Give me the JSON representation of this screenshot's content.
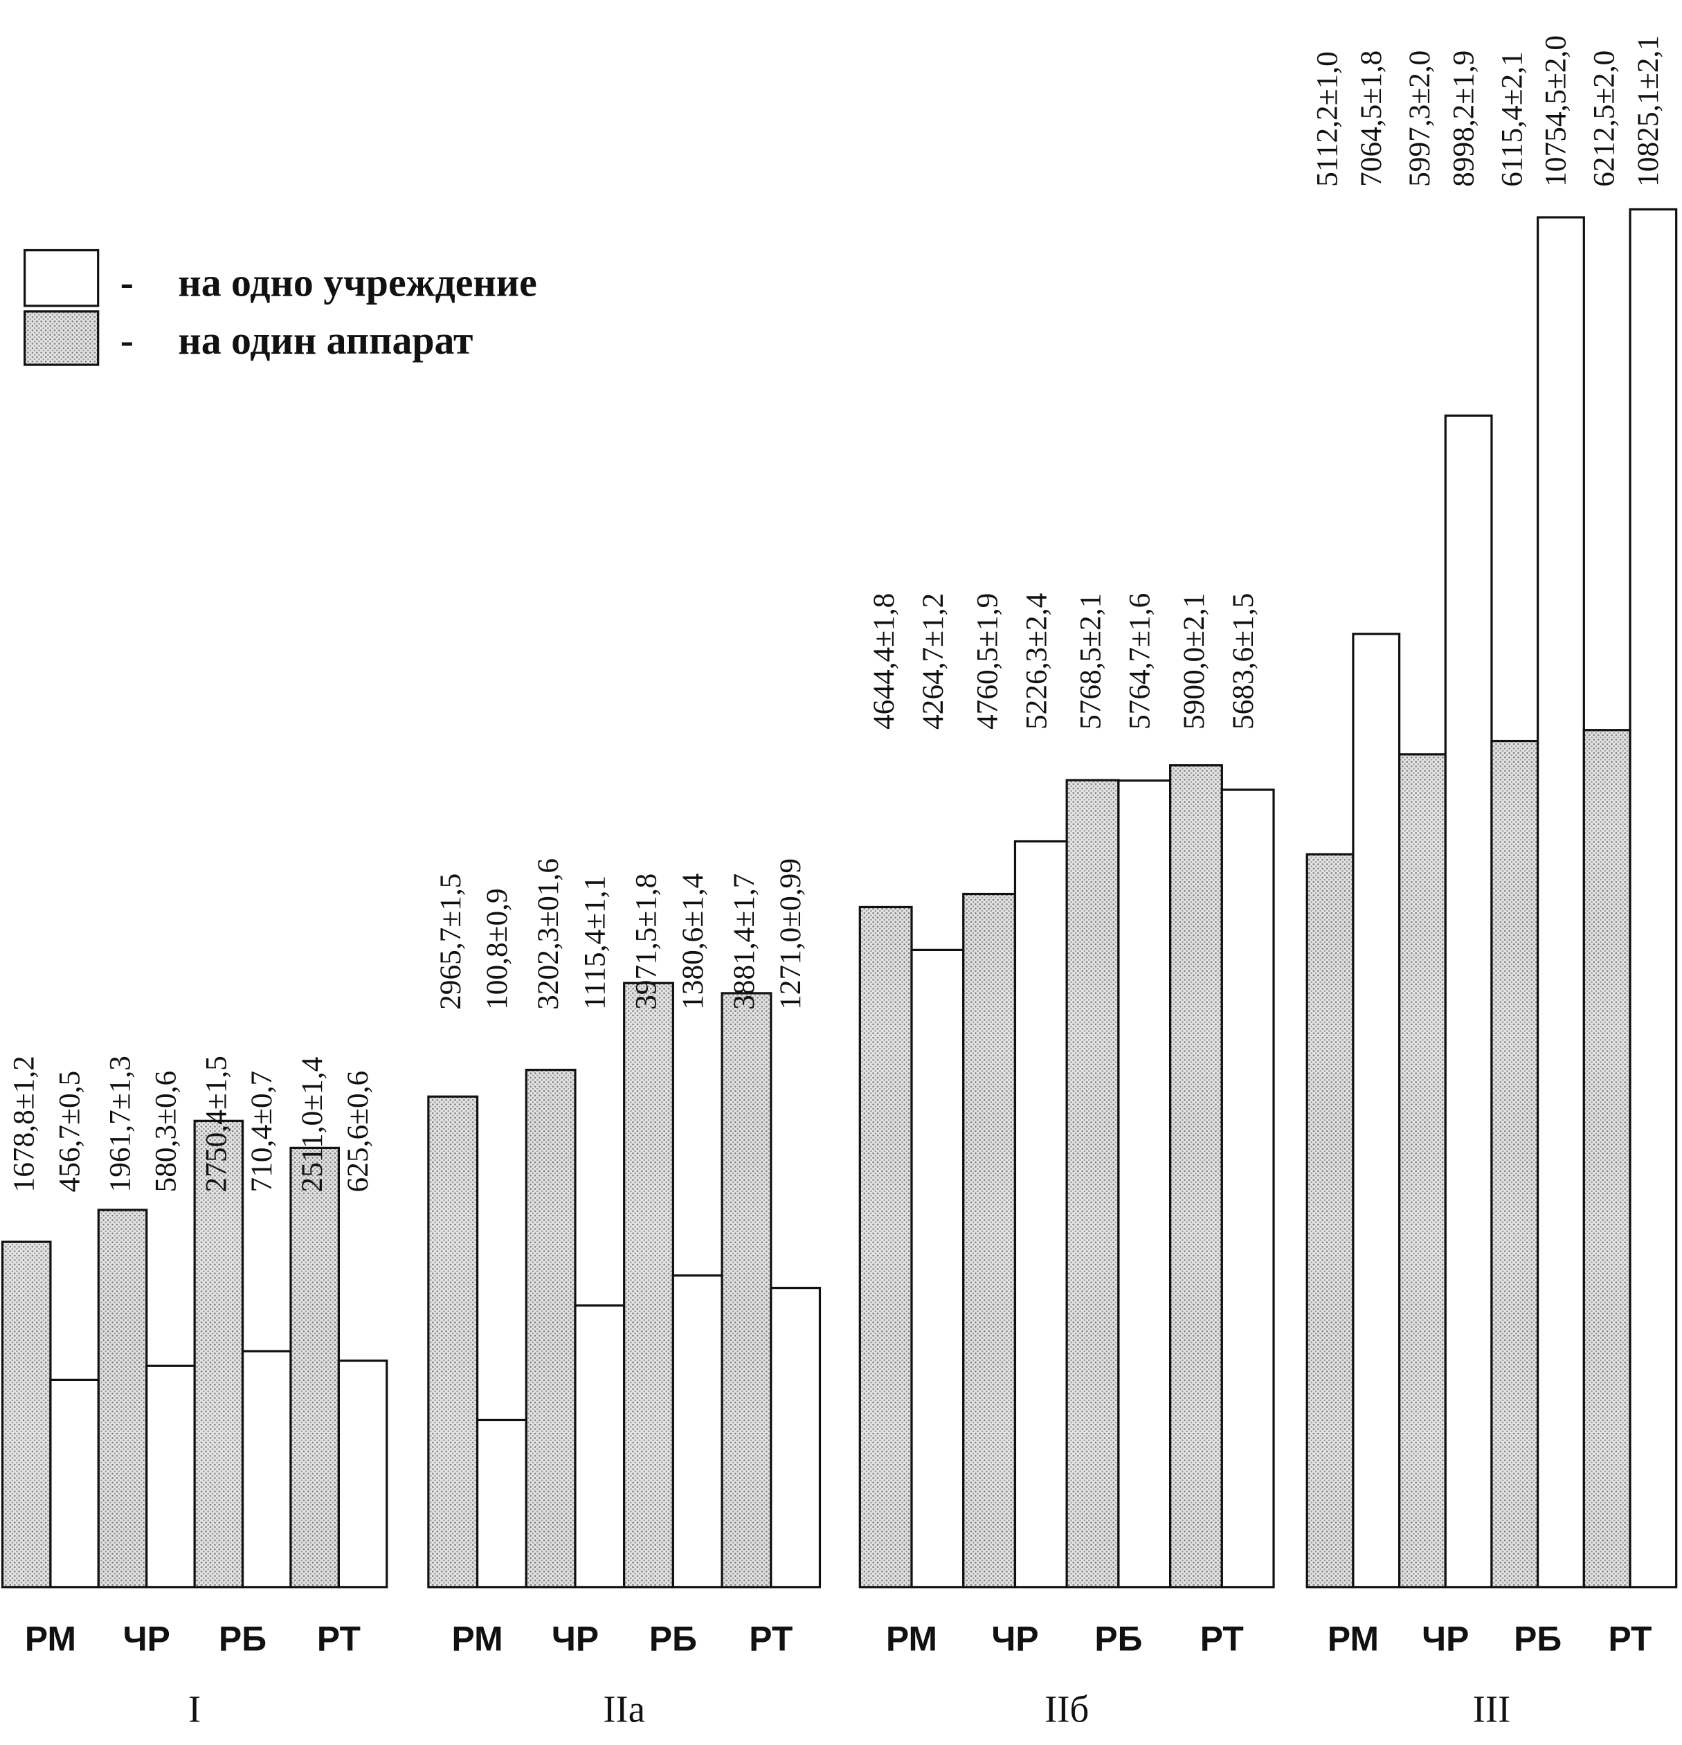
{
  "chart_data": {
    "type": "bar",
    "title": "",
    "xlabel": "",
    "ylabel": "",
    "legend_position": "top-left",
    "legend": [
      {
        "key": "institution",
        "dash": "-",
        "label": "на одно учреждение",
        "fill": "#ffffff"
      },
      {
        "key": "apparatus",
        "dash": "-",
        "label": "на один аппарат",
        "fill": "dotted-gray"
      }
    ],
    "categories": [
      "РМ",
      "ЧР",
      "РБ",
      "РТ"
    ],
    "groups": [
      {
        "name": "I",
        "apparatus": [
          "1678,8±1,2",
          "1961,7±1,3",
          "2750,4±1,5",
          "2511,0±1,4"
        ],
        "institution": [
          "456,7±0,5",
          "580,3±0,6",
          "710,4±0,7",
          "625,6±0,6"
        ],
        "apparatus_values": [
          1678.8,
          1961.7,
          2750.4,
          2511.0
        ],
        "institution_values": [
          456.7,
          580.3,
          710.4,
          625.6
        ]
      },
      {
        "name": "IIа",
        "apparatus": [
          "2965,7±1,5",
          "3202,3±01,6",
          "3971,5±1,8",
          "3881,4±1,7"
        ],
        "institution": [
          "100,8±0,9",
          "1115,4±1,1",
          "1380,6±1,4",
          "1271,0±0,99"
        ],
        "apparatus_values": [
          2965.7,
          3202.3,
          3971.5,
          3881.4
        ],
        "institution_values": [
          100.8,
          1115.4,
          1380.6,
          1271.0
        ]
      },
      {
        "name": "IIб",
        "apparatus": [
          "4644,4±1,8",
          "4760,5±1,9",
          "5768,5±2,1",
          "5900,0±2,1"
        ],
        "institution": [
          "4264,7±1,2",
          "5226,3±2,4",
          "5764,7±1,6",
          "5683,6±1,5"
        ],
        "apparatus_values": [
          4644.4,
          4760.5,
          5768.5,
          5900.0
        ],
        "institution_values": [
          4264.7,
          5226.3,
          5764.7,
          5683.6
        ]
      },
      {
        "name": "III",
        "apparatus": [
          "5112,2±1,0",
          "5997,3±2,0",
          "6115,4±2,1",
          "6212,5±2,0"
        ],
        "institution": [
          "7064,5±1,8",
          "8998,2±1,9",
          "10754,5±2,0",
          "10825,1±2,1"
        ],
        "apparatus_values": [
          5112.2,
          5997.3,
          6115.4,
          6212.5
        ],
        "institution_values": [
          7064.5,
          8998.2,
          10754.5,
          10825.1
        ]
      }
    ]
  }
}
